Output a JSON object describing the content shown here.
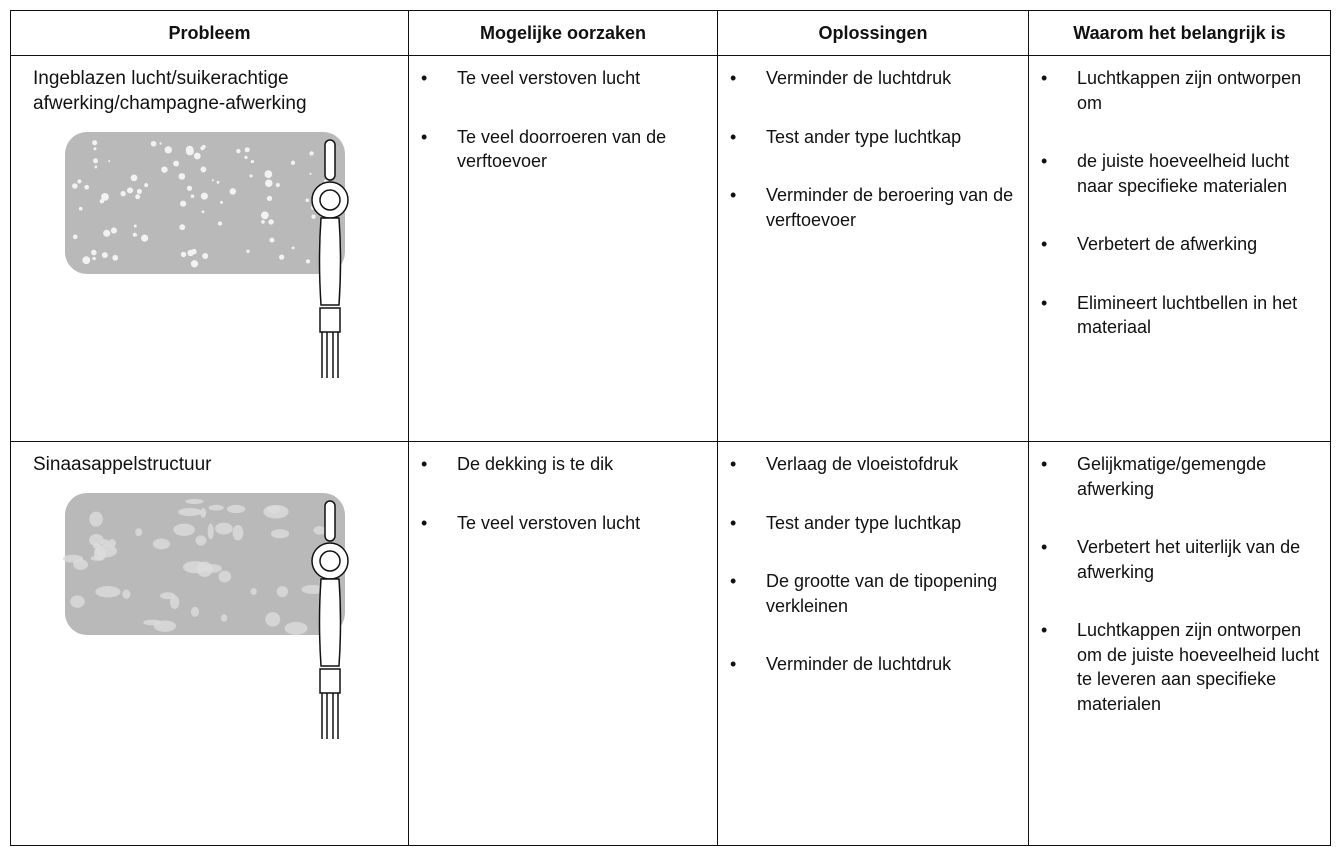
{
  "table": {
    "header": [
      "Probleem",
      "Mogelijke oorzaken",
      "Oplossingen",
      "Waarom het belangrijk is"
    ],
    "rows": [
      {
        "problem": "Ingeblazen lucht/suikerachtige afwerking/champagne-afwerking",
        "causes": [
          "Te veel verstoven lucht",
          "Te veel doorroeren van de verftoevoer"
        ],
        "solutions": [
          "Verminder de luchtdruk",
          "Test ander type luchtkap",
          "Verminder de beroering van de verftoevoer"
        ],
        "reasons": [
          "Luchtkappen zijn ontworpen om",
          "de juiste hoeveelheid lucht naar specifieke materialen",
          "Verbetert de afwerking",
          "Elimineert luchtbellen in het materiaal"
        ]
      },
      {
        "problem": "Sinaasappelstructuur",
        "causes": [
          "De dekking is te dik",
          "Te veel verstoven lucht"
        ],
        "solutions": [
          "Verlaag de vloeistofdruk",
          "Test ander type luchtkap",
          "De grootte van de tipopening verkleinen",
          "Verminder de luchtdruk"
        ],
        "reasons": [
          "Gelijkmatige/gemengde afwerking",
          "Verbetert het uiterlijk van de afwerking",
          "Luchtkappen zijn ontworpen om de juiste hoeveelheid lucht te leveren aan specifieke materialen"
        ]
      }
    ]
  }
}
